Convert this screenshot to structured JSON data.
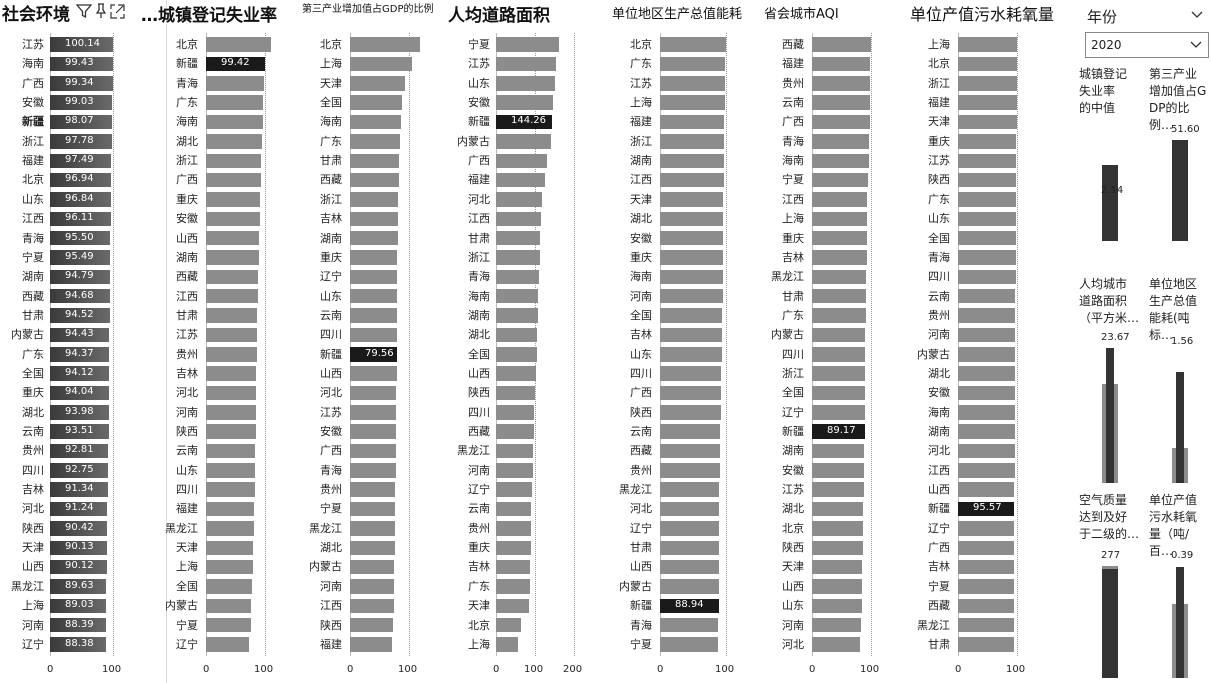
{
  "filter": {
    "title": "年份",
    "selected": "2020",
    "collapse_icon": "chevron-down-icon",
    "dropdown_icon": "chevron-down-icon"
  },
  "panels": [
    {
      "id": "social",
      "title": "社会环境",
      "title_size": "big",
      "icons": [
        "filter-icon",
        "pin-icon",
        "focus-mode-icon"
      ],
      "xticks": [
        "0",
        "100"
      ],
      "xmax": 100,
      "style": "grad",
      "rows": [
        {
          "c": "江苏",
          "v": 100.14,
          "label": "100.14"
        },
        {
          "c": "海南",
          "v": 99.43,
          "label": "99.43"
        },
        {
          "c": "广西",
          "v": 99.34,
          "label": "99.34"
        },
        {
          "c": "安徽",
          "v": 99.03,
          "label": "99.03"
        },
        {
          "c": "新疆",
          "v": 98.07,
          "label": "98.07",
          "bold": true
        },
        {
          "c": "浙江",
          "v": 97.78,
          "label": "97.78"
        },
        {
          "c": "福建",
          "v": 97.49,
          "label": "97.49"
        },
        {
          "c": "北京",
          "v": 96.94,
          "label": "96.94"
        },
        {
          "c": "山东",
          "v": 96.84,
          "label": "96.84"
        },
        {
          "c": "江西",
          "v": 96.11,
          "label": "96.11"
        },
        {
          "c": "青海",
          "v": 95.5,
          "label": "95.50"
        },
        {
          "c": "宁夏",
          "v": 95.49,
          "label": "95.49"
        },
        {
          "c": "湖南",
          "v": 94.79,
          "label": "94.79"
        },
        {
          "c": "西藏",
          "v": 94.68,
          "label": "94.68"
        },
        {
          "c": "甘肃",
          "v": 94.52,
          "label": "94.52"
        },
        {
          "c": "内蒙古",
          "v": 94.43,
          "label": "94.43"
        },
        {
          "c": "广东",
          "v": 94.37,
          "label": "94.37"
        },
        {
          "c": "全国",
          "v": 94.12,
          "label": "94.12"
        },
        {
          "c": "重庆",
          "v": 94.04,
          "label": "94.04"
        },
        {
          "c": "湖北",
          "v": 93.98,
          "label": "93.98"
        },
        {
          "c": "云南",
          "v": 93.51,
          "label": "93.51"
        },
        {
          "c": "贵州",
          "v": 92.81,
          "label": "92.81"
        },
        {
          "c": "四川",
          "v": 92.75,
          "label": "92.75"
        },
        {
          "c": "吉林",
          "v": 91.34,
          "label": "91.34"
        },
        {
          "c": "河北",
          "v": 91.24,
          "label": "91.24"
        },
        {
          "c": "陕西",
          "v": 90.42,
          "label": "90.42"
        },
        {
          "c": "天津",
          "v": 90.13,
          "label": "90.13"
        },
        {
          "c": "山西",
          "v": 90.12,
          "label": "90.12"
        },
        {
          "c": "黑龙江",
          "v": 89.63,
          "label": "89.63"
        },
        {
          "c": "上海",
          "v": 89.03,
          "label": "89.03"
        },
        {
          "c": "河南",
          "v": 88.39,
          "label": "88.39"
        },
        {
          "c": "辽宁",
          "v": 88.38,
          "label": "88.38"
        }
      ]
    },
    {
      "id": "unemp",
      "title": "…城镇登记失业率",
      "title_size": "big",
      "xticks": [
        "0",
        "100"
      ],
      "xmax": 100,
      "rows": [
        {
          "c": "北京",
          "v": 110
        },
        {
          "c": "新疆",
          "v": 99.42,
          "label": "99.42",
          "sel": true
        },
        {
          "c": "青海",
          "v": 98
        },
        {
          "c": "广东",
          "v": 97
        },
        {
          "c": "海南",
          "v": 96
        },
        {
          "c": "湖北",
          "v": 95
        },
        {
          "c": "浙江",
          "v": 94
        },
        {
          "c": "广西",
          "v": 93
        },
        {
          "c": "重庆",
          "v": 92
        },
        {
          "c": "安徽",
          "v": 91
        },
        {
          "c": "山西",
          "v": 90
        },
        {
          "c": "湖南",
          "v": 89
        },
        {
          "c": "西藏",
          "v": 88
        },
        {
          "c": "江西",
          "v": 87.5
        },
        {
          "c": "甘肃",
          "v": 87
        },
        {
          "c": "江苏",
          "v": 86.5
        },
        {
          "c": "贵州",
          "v": 86
        },
        {
          "c": "吉林",
          "v": 85.5
        },
        {
          "c": "河北",
          "v": 85
        },
        {
          "c": "河南",
          "v": 84.5
        },
        {
          "c": "陕西",
          "v": 84
        },
        {
          "c": "云南",
          "v": 83.5
        },
        {
          "c": "山东",
          "v": 83
        },
        {
          "c": "四川",
          "v": 82.5
        },
        {
          "c": "福建",
          "v": 82
        },
        {
          "c": "黑龙江",
          "v": 81
        },
        {
          "c": "天津",
          "v": 80
        },
        {
          "c": "上海",
          "v": 79
        },
        {
          "c": "全国",
          "v": 78
        },
        {
          "c": "内蒙古",
          "v": 77
        },
        {
          "c": "宁夏",
          "v": 76
        },
        {
          "c": "辽宁",
          "v": 73
        }
      ]
    },
    {
      "id": "tertiary",
      "title": "第三产业增加值占GDP的比例",
      "title_size": "small",
      "xticks": [
        "0",
        "100"
      ],
      "xmax": 100,
      "rows": [
        {
          "c": "北京",
          "v": 118
        },
        {
          "c": "上海",
          "v": 105
        },
        {
          "c": "天津",
          "v": 93
        },
        {
          "c": "全国",
          "v": 88
        },
        {
          "c": "海南",
          "v": 86
        },
        {
          "c": "广东",
          "v": 84
        },
        {
          "c": "甘肃",
          "v": 83
        },
        {
          "c": "西藏",
          "v": 82.5
        },
        {
          "c": "浙江",
          "v": 82
        },
        {
          "c": "吉林",
          "v": 81.5
        },
        {
          "c": "湖南",
          "v": 81
        },
        {
          "c": "重庆",
          "v": 80.5
        },
        {
          "c": "辽宁",
          "v": 80
        },
        {
          "c": "山东",
          "v": 80
        },
        {
          "c": "云南",
          "v": 79.8
        },
        {
          "c": "四川",
          "v": 79.7
        },
        {
          "c": "新疆",
          "v": 79.56,
          "label": "79.56",
          "sel": true
        },
        {
          "c": "山西",
          "v": 79
        },
        {
          "c": "河北",
          "v": 78.8
        },
        {
          "c": "江苏",
          "v": 78.5
        },
        {
          "c": "安徽",
          "v": 78.2
        },
        {
          "c": "广西",
          "v": 78
        },
        {
          "c": "青海",
          "v": 77.5
        },
        {
          "c": "贵州",
          "v": 77
        },
        {
          "c": "宁夏",
          "v": 76.5
        },
        {
          "c": "黑龙江",
          "v": 76
        },
        {
          "c": "湖北",
          "v": 75.5
        },
        {
          "c": "内蒙古",
          "v": 75
        },
        {
          "c": "河南",
          "v": 74.5
        },
        {
          "c": "江西",
          "v": 74
        },
        {
          "c": "陕西",
          "v": 73
        },
        {
          "c": "福建",
          "v": 72
        }
      ]
    },
    {
      "id": "road",
      "title": "人均道路面积",
      "title_size": "big",
      "xticks": [
        "0",
        "100",
        "200"
      ],
      "xmax": 200,
      "rows": [
        {
          "c": "宁夏",
          "v": 162
        },
        {
          "c": "江苏",
          "v": 155
        },
        {
          "c": "山东",
          "v": 152
        },
        {
          "c": "安徽",
          "v": 145
        },
        {
          "c": "新疆",
          "v": 144.26,
          "label": "144.26",
          "sel": true
        },
        {
          "c": "内蒙古",
          "v": 140
        },
        {
          "c": "广西",
          "v": 130
        },
        {
          "c": "福建",
          "v": 125
        },
        {
          "c": "河北",
          "v": 118
        },
        {
          "c": "江西",
          "v": 116
        },
        {
          "c": "甘肃",
          "v": 114
        },
        {
          "c": "浙江",
          "v": 112
        },
        {
          "c": "青海",
          "v": 110
        },
        {
          "c": "海南",
          "v": 108
        },
        {
          "c": "湖南",
          "v": 107
        },
        {
          "c": "湖北",
          "v": 106
        },
        {
          "c": "全国",
          "v": 104
        },
        {
          "c": "山西",
          "v": 102
        },
        {
          "c": "陕西",
          "v": 100
        },
        {
          "c": "四川",
          "v": 98
        },
        {
          "c": "西藏",
          "v": 97
        },
        {
          "c": "黑龙江",
          "v": 96
        },
        {
          "c": "河南",
          "v": 94
        },
        {
          "c": "辽宁",
          "v": 92
        },
        {
          "c": "云南",
          "v": 91
        },
        {
          "c": "贵州",
          "v": 90
        },
        {
          "c": "重庆",
          "v": 89
        },
        {
          "c": "吉林",
          "v": 88
        },
        {
          "c": "广东",
          "v": 86
        },
        {
          "c": "天津",
          "v": 84
        },
        {
          "c": "北京",
          "v": 64
        },
        {
          "c": "上海",
          "v": 56
        }
      ]
    },
    {
      "id": "energy",
      "title": "单位地区生产总值能耗",
      "title_size": "big",
      "xticks": [
        "0",
        "100"
      ],
      "xmax": 100,
      "rows": [
        {
          "c": "北京",
          "v": 100
        },
        {
          "c": "广东",
          "v": 99
        },
        {
          "c": "江苏",
          "v": 98.5
        },
        {
          "c": "上海",
          "v": 98
        },
        {
          "c": "福建",
          "v": 97.5
        },
        {
          "c": "浙江",
          "v": 97
        },
        {
          "c": "湖南",
          "v": 96.8
        },
        {
          "c": "江西",
          "v": 96.5
        },
        {
          "c": "天津",
          "v": 96.2
        },
        {
          "c": "湖北",
          "v": 96
        },
        {
          "c": "安徽",
          "v": 95.7
        },
        {
          "c": "重庆",
          "v": 95.5
        },
        {
          "c": "海南",
          "v": 95.2
        },
        {
          "c": "河南",
          "v": 95
        },
        {
          "c": "全国",
          "v": 94.5
        },
        {
          "c": "吉林",
          "v": 94
        },
        {
          "c": "山东",
          "v": 93.5
        },
        {
          "c": "四川",
          "v": 93
        },
        {
          "c": "广西",
          "v": 92.5
        },
        {
          "c": "陕西",
          "v": 92
        },
        {
          "c": "云南",
          "v": 91.5
        },
        {
          "c": "西藏",
          "v": 91
        },
        {
          "c": "贵州",
          "v": 90.5
        },
        {
          "c": "黑龙江",
          "v": 90
        },
        {
          "c": "河北",
          "v": 89.8
        },
        {
          "c": "辽宁",
          "v": 89.6
        },
        {
          "c": "甘肃",
          "v": 89.4
        },
        {
          "c": "山西",
          "v": 89.2
        },
        {
          "c": "内蒙古",
          "v": 89
        },
        {
          "c": "新疆",
          "v": 88.94,
          "label": "88.94",
          "sel": true
        },
        {
          "c": "青海",
          "v": 88.5
        },
        {
          "c": "宁夏",
          "v": 88
        }
      ]
    },
    {
      "id": "aqi",
      "title": "省会城市AQI",
      "title_size": "big",
      "xticks": [
        "0",
        "100"
      ],
      "xmax": 100,
      "rows": [
        {
          "c": "西藏",
          "v": 100
        },
        {
          "c": "福建",
          "v": 99
        },
        {
          "c": "贵州",
          "v": 98.5
        },
        {
          "c": "云南",
          "v": 98
        },
        {
          "c": "广西",
          "v": 97.5
        },
        {
          "c": "青海",
          "v": 97
        },
        {
          "c": "海南",
          "v": 96.5
        },
        {
          "c": "宁夏",
          "v": 95
        },
        {
          "c": "江西",
          "v": 94
        },
        {
          "c": "上海",
          "v": 93.5
        },
        {
          "c": "重庆",
          "v": 93
        },
        {
          "c": "吉林",
          "v": 92.5
        },
        {
          "c": "黑龙江",
          "v": 92
        },
        {
          "c": "甘肃",
          "v": 91.5
        },
        {
          "c": "广东",
          "v": 91
        },
        {
          "c": "内蒙古",
          "v": 90.5
        },
        {
          "c": "四川",
          "v": 90.2
        },
        {
          "c": "浙江",
          "v": 90
        },
        {
          "c": "全国",
          "v": 89.8
        },
        {
          "c": "辽宁",
          "v": 89.5
        },
        {
          "c": "新疆",
          "v": 89.17,
          "label": "89.17",
          "sel": true
        },
        {
          "c": "湖南",
          "v": 88.5
        },
        {
          "c": "安徽",
          "v": 88
        },
        {
          "c": "江苏",
          "v": 87.5
        },
        {
          "c": "湖北",
          "v": 87
        },
        {
          "c": "北京",
          "v": 86.5
        },
        {
          "c": "陕西",
          "v": 86
        },
        {
          "c": "天津",
          "v": 85.5
        },
        {
          "c": "山西",
          "v": 85
        },
        {
          "c": "山东",
          "v": 84
        },
        {
          "c": "河南",
          "v": 83
        },
        {
          "c": "河北",
          "v": 82
        }
      ]
    },
    {
      "id": "cod",
      "title": "单位产值污水耗氧量",
      "title_size": "big",
      "xticks": [
        "0",
        "100"
      ],
      "xmax": 100,
      "rows": [
        {
          "c": "上海",
          "v": 100
        },
        {
          "c": "北京",
          "v": 99.8
        },
        {
          "c": "浙江",
          "v": 99.6
        },
        {
          "c": "福建",
          "v": 99.4
        },
        {
          "c": "天津",
          "v": 99.2
        },
        {
          "c": "重庆",
          "v": 99
        },
        {
          "c": "江苏",
          "v": 98.8
        },
        {
          "c": "陕西",
          "v": 98.6
        },
        {
          "c": "广东",
          "v": 98.4
        },
        {
          "c": "山东",
          "v": 98.2
        },
        {
          "c": "全国",
          "v": 98
        },
        {
          "c": "青海",
          "v": 97.8
        },
        {
          "c": "四川",
          "v": 97.6
        },
        {
          "c": "云南",
          "v": 97.4
        },
        {
          "c": "贵州",
          "v": 97.2
        },
        {
          "c": "河南",
          "v": 97
        },
        {
          "c": "内蒙古",
          "v": 96.8
        },
        {
          "c": "湖北",
          "v": 96.6
        },
        {
          "c": "安徽",
          "v": 96.4
        },
        {
          "c": "海南",
          "v": 96.2
        },
        {
          "c": "湖南",
          "v": 96
        },
        {
          "c": "河北",
          "v": 95.9
        },
        {
          "c": "江西",
          "v": 95.8
        },
        {
          "c": "山西",
          "v": 95.7
        },
        {
          "c": "新疆",
          "v": 95.57,
          "label": "95.57",
          "sel": true
        },
        {
          "c": "辽宁",
          "v": 95.4
        },
        {
          "c": "广西",
          "v": 95.2
        },
        {
          "c": "吉林",
          "v": 95
        },
        {
          "c": "宁夏",
          "v": 94.8
        },
        {
          "c": "西藏",
          "v": 94.6
        },
        {
          "c": "黑龙江",
          "v": 94.4
        },
        {
          "c": "甘肃",
          "v": 94.2
        }
      ]
    }
  ],
  "kpis": [
    {
      "title": "城镇登记失业率的中值",
      "lines": [
        "城镇登记",
        "失业率",
        "的中值"
      ],
      "value": "2.14",
      "valuePos": "mid",
      "light": 0.5,
      "dark": 0.75
    },
    {
      "title": "第三产业增加值占GDP的比例…",
      "lines": [
        "第三产业",
        "增加值占G",
        "DP的比例…"
      ],
      "value": "51.60",
      "valuePos": "top",
      "light": 0,
      "dark": 1.0
    },
    {
      "title": "人均城市道路面积（平方米…",
      "lines": [
        "人均城市",
        "道路面积",
        "（平方米…"
      ],
      "value": "23.67",
      "valuePos": "top",
      "light": 0.73,
      "dark": 1.0
    },
    {
      "title": "单位地区生产总值能耗(吨标…",
      "lines": [
        "单位地区",
        "生产总值",
        "能耗(吨标…"
      ],
      "value": "1.56",
      "valuePos": "top",
      "light": 0.27,
      "dark": 0.85
    },
    {
      "title": "空气质量达到及好于二级的…",
      "lines": [
        "空气质量",
        "达到及好",
        "于二级的…"
      ],
      "value": "277",
      "valuePos": "top",
      "light": 1.0,
      "dark": 0.97
    },
    {
      "title": "单位产值污水耗氧量（吨/百…",
      "lines": [
        "单位产值",
        "污水耗氧",
        "量（吨/百…"
      ],
      "value": "0.39",
      "valuePos": "top",
      "light": 0.66,
      "dark": 0.99
    }
  ]
}
